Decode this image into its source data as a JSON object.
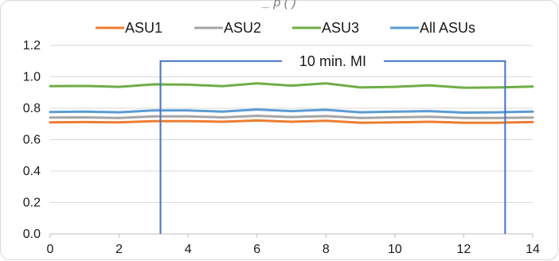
{
  "chart_data": {
    "type": "line",
    "title": "",
    "title_partial": "_         p             (  )",
    "xlabel": "",
    "ylabel": "",
    "xlim": [
      0,
      14
    ],
    "ylim": [
      0,
      1.2
    ],
    "x_ticks": [
      "0",
      "2",
      "4",
      "6",
      "8",
      "10",
      "12",
      "14"
    ],
    "y_ticks": [
      "0.0",
      "0.2",
      "0.4",
      "0.6",
      "0.8",
      "1.0",
      "1.2"
    ],
    "x_tick_values": [
      0,
      2,
      4,
      6,
      8,
      10,
      12,
      14
    ],
    "y_tick_values": [
      0,
      0.2,
      0.4,
      0.6,
      0.8,
      1.0,
      1.2
    ],
    "grid": "horizontal",
    "legend": "top",
    "x": [
      0,
      1,
      2,
      3,
      4,
      5,
      6,
      7,
      8,
      9,
      10,
      11,
      12,
      13,
      14
    ],
    "series": [
      {
        "name": "ASU1",
        "color": "#ed7d31",
        "values": [
          0.71,
          0.712,
          0.71,
          0.718,
          0.718,
          0.714,
          0.722,
          0.714,
          0.72,
          0.708,
          0.71,
          0.714,
          0.708,
          0.708,
          0.712
        ]
      },
      {
        "name": "ASU2",
        "color": "#a5a5a5",
        "values": [
          0.74,
          0.742,
          0.738,
          0.748,
          0.748,
          0.742,
          0.752,
          0.744,
          0.75,
          0.738,
          0.742,
          0.746,
          0.738,
          0.738,
          0.74
        ]
      },
      {
        "name": "ASU3",
        "color": "#70ad47",
        "values": [
          0.94,
          0.942,
          0.936,
          0.952,
          0.95,
          0.94,
          0.958,
          0.944,
          0.958,
          0.932,
          0.936,
          0.946,
          0.93,
          0.932,
          0.938
        ]
      },
      {
        "name": "All ASUs",
        "color": "#5b9bd5",
        "values": [
          0.776,
          0.778,
          0.774,
          0.786,
          0.786,
          0.778,
          0.792,
          0.782,
          0.79,
          0.774,
          0.778,
          0.782,
          0.772,
          0.774,
          0.778
        ]
      }
    ],
    "annotation": {
      "label": "10 min. MI",
      "color": "#4472c4",
      "x_start": 3.2,
      "x_end": 13.2,
      "y_top": 1.1
    }
  }
}
